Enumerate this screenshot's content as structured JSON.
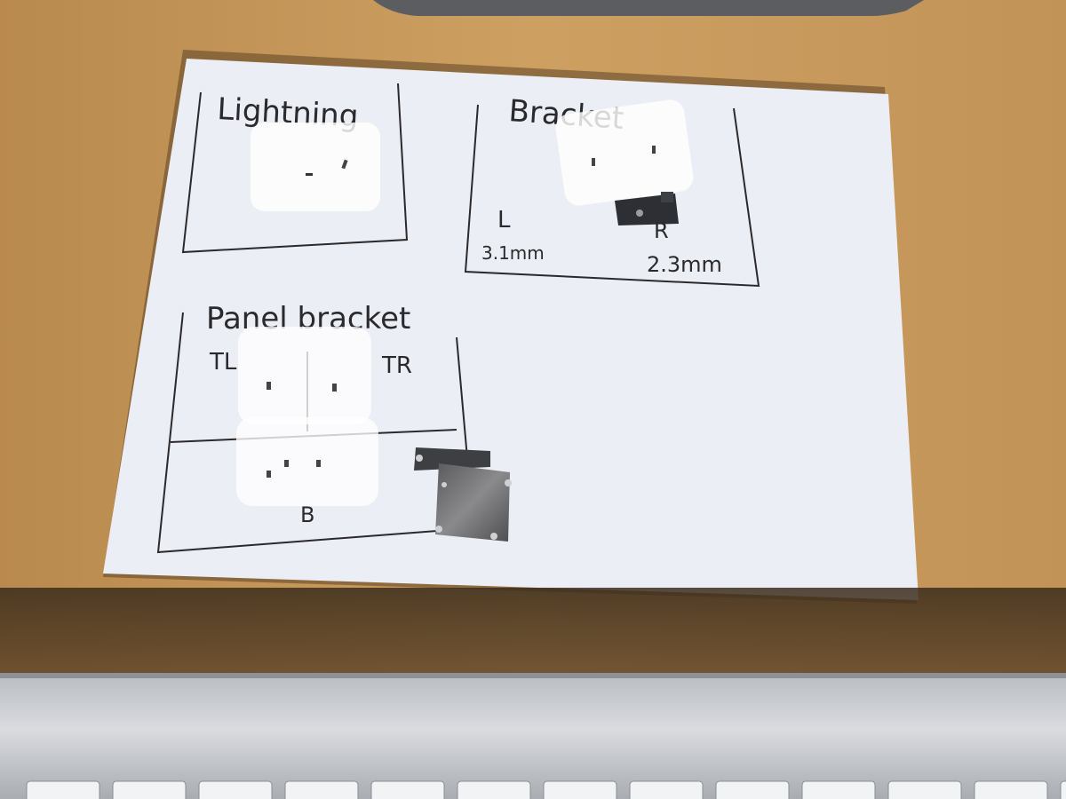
{
  "scene": {
    "description_free": true,
    "sheet": {
      "sections": [
        {
          "id": "lightning",
          "label": "Lightning"
        },
        {
          "id": "bracket",
          "label": "Bracket",
          "notes": [
            "L",
            "3.1mm",
            "R",
            "2.3mm"
          ]
        },
        {
          "id": "panel-bracket",
          "label": "Panel bracket",
          "corners": [
            "TL",
            "TR",
            "B"
          ]
        }
      ]
    }
  },
  "colors": {
    "desk": "#c79a5c",
    "paper": "#ecedf4",
    "ink": "#2a2a2e",
    "keyboard": "#c9cbcf",
    "metal": "#6f6f70"
  }
}
